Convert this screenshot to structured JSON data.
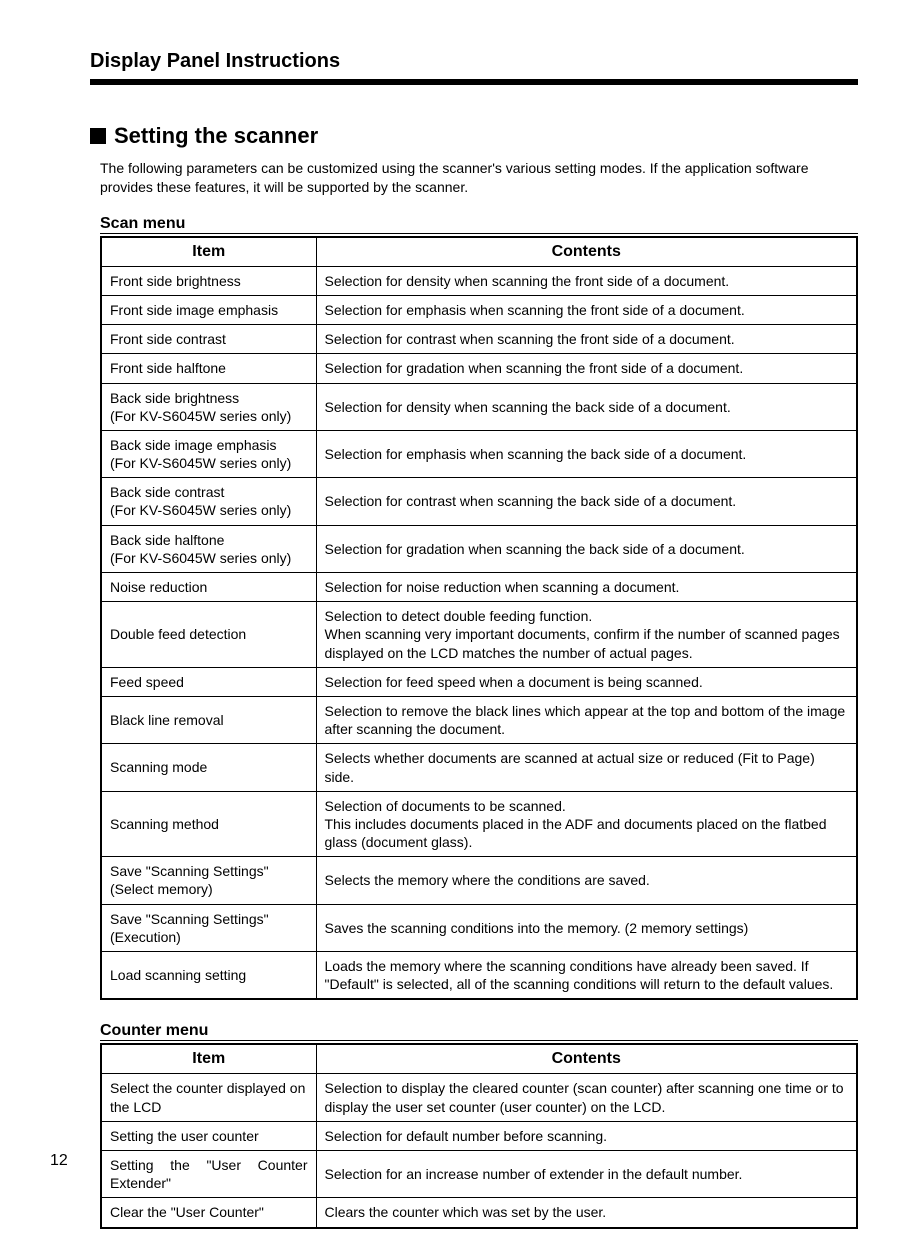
{
  "header": "Display Panel Instructions",
  "section_title": "Setting the scanner",
  "intro": "The following parameters can be customized using the scanner's various setting modes. If the application software provides these features, it will be supported by the scanner.",
  "scan_menu": {
    "title": "Scan menu",
    "columns": {
      "left": "Item",
      "right": "Contents"
    },
    "rows": [
      {
        "item": "Front side brightness",
        "content": "Selection for density when scanning the front side of a document."
      },
      {
        "item": "Front side image emphasis",
        "content": "Selection for emphasis when scanning the front side of a document."
      },
      {
        "item": "Front side contrast",
        "content": "Selection for contrast when scanning the front side of a document."
      },
      {
        "item": "Front side halftone",
        "content": "Selection for gradation when scanning the front side of a document."
      },
      {
        "item": "Back side brightness\n(For KV-S6045W series only)",
        "content": "Selection for density when scanning the back side of a document."
      },
      {
        "item": "Back side image emphasis\n(For KV-S6045W series only)",
        "content": "Selection for emphasis when scanning the back side of a document."
      },
      {
        "item": "Back side contrast\n(For KV-S6045W series only)",
        "content": "Selection for contrast when scanning the back side of a document."
      },
      {
        "item": "Back side halftone\n(For KV-S6045W series only)",
        "content": "Selection for gradation when scanning the back side of a document."
      },
      {
        "item": "Noise reduction",
        "content": "Selection for noise reduction when scanning a document."
      },
      {
        "item": "Double feed detection",
        "content": "Selection to detect double feeding function.\nWhen scanning very important documents, confirm if the number of scanned pages displayed on the LCD matches the number of actual pages."
      },
      {
        "item": "Feed speed",
        "content": "Selection for feed speed when a document is being scanned."
      },
      {
        "item": "Black line removal",
        "content": "Selection to remove the black lines which appear at the top and bottom of the image after scanning the document."
      },
      {
        "item": "Scanning mode",
        "content": "Selects whether documents are scanned at actual size or reduced (Fit to Page) side."
      },
      {
        "item": "Scanning method",
        "content": "Selection of documents to be scanned.\nThis includes documents placed in the ADF and documents placed on the flatbed glass (document glass)."
      },
      {
        "item": "Save \"Scanning Settings\"\n(Select memory)",
        "content": "Selects the memory where the conditions are saved."
      },
      {
        "item": "Save \"Scanning Settings\"\n(Execution)",
        "content": "Saves the scanning conditions into the memory. (2 memory settings)"
      },
      {
        "item": "Load scanning setting",
        "content": "Loads the memory where the scanning conditions have already been saved. If \"Default\" is selected, all of the scanning conditions will return to the default values.",
        "justify": true
      }
    ]
  },
  "counter_menu": {
    "title": "Counter menu",
    "columns": {
      "left": "Item",
      "right": "Contents"
    },
    "rows": [
      {
        "item": "Select the counter displayed on the LCD",
        "content": "Selection to display the cleared counter (scan counter) after scanning one time or to display the user set counter (user counter) on the LCD.",
        "justify": true
      },
      {
        "item": "Setting the user counter",
        "content": "Selection for default number before scanning."
      },
      {
        "item": "Setting the \"User Counter Extender\"",
        "item_justify": true,
        "content": "Selection for an increase number of extender in the default number."
      },
      {
        "item": "Clear the \"User Counter\"",
        "content": "Clears the counter which was set by the user."
      }
    ]
  },
  "page_number": "12"
}
